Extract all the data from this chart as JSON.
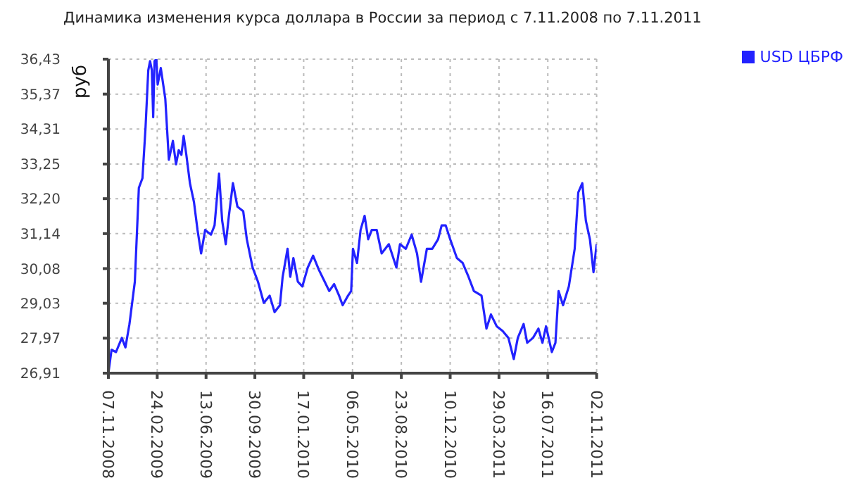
{
  "chart_data": {
    "type": "line",
    "title": "Динамика изменения курса доллара в России за период с 7.11.2008 по 7.11.2011",
    "ylabel": "руб",
    "x": [
      "2008-11-07",
      "2008-11-14",
      "2008-11-24",
      "2008-12-07",
      "2008-12-15",
      "2008-12-24",
      "2009-01-05",
      "2009-01-14",
      "2009-01-22",
      "2009-01-29",
      "2009-02-04",
      "2009-02-08",
      "2009-02-12",
      "2009-02-15",
      "2009-02-18",
      "2009-02-22",
      "2009-02-25",
      "2009-03-04",
      "2009-03-14",
      "2009-03-22",
      "2009-03-31",
      "2009-04-07",
      "2009-04-13",
      "2009-04-19",
      "2009-04-24",
      "2009-04-30",
      "2009-05-08",
      "2009-05-17",
      "2009-05-25",
      "2009-06-02",
      "2009-06-11",
      "2009-06-24",
      "2009-07-02",
      "2009-07-12",
      "2009-07-19",
      "2009-07-27",
      "2009-08-03",
      "2009-08-12",
      "2009-08-22",
      "2009-09-04",
      "2009-09-12",
      "2009-09-25",
      "2009-10-07",
      "2009-10-20",
      "2009-11-02",
      "2009-11-13",
      "2009-11-25",
      "2009-12-01",
      "2009-12-12",
      "2009-12-18",
      "2009-12-25",
      "2010-01-04",
      "2010-01-14",
      "2010-01-26",
      "2010-02-07",
      "2010-02-20",
      "2010-03-05",
      "2010-03-15",
      "2010-03-26",
      "2010-04-06",
      "2010-04-14",
      "2010-04-26",
      "2010-05-03",
      "2010-05-07",
      "2010-05-16",
      "2010-05-24",
      "2010-06-02",
      "2010-06-10",
      "2010-06-18",
      "2010-06-29",
      "2010-07-10",
      "2010-07-26",
      "2010-08-12",
      "2010-08-20",
      "2010-09-02",
      "2010-09-15",
      "2010-09-27",
      "2010-10-06",
      "2010-10-19",
      "2010-10-31",
      "2010-11-13",
      "2010-11-21",
      "2010-11-30",
      "2010-12-10",
      "2010-12-25",
      "2011-01-07",
      "2011-01-20",
      "2011-02-01",
      "2011-02-18",
      "2011-03-01",
      "2011-03-11",
      "2011-03-24",
      "2011-04-06",
      "2011-04-19",
      "2011-05-01",
      "2011-05-10",
      "2011-05-23",
      "2011-05-31",
      "2011-06-13",
      "2011-06-25",
      "2011-07-04",
      "2011-07-12",
      "2011-07-25",
      "2011-08-02",
      "2011-08-09",
      "2011-08-19",
      "2011-09-01",
      "2011-09-14",
      "2011-09-22",
      "2011-10-01",
      "2011-10-09",
      "2011-10-18",
      "2011-10-26",
      "2011-11-02"
    ],
    "series": [
      {
        "name": "USD ЦБРФ",
        "color": "#2222ff",
        "values": [
          26.91,
          27.62,
          27.55,
          27.98,
          27.69,
          28.4,
          29.68,
          32.53,
          32.82,
          34.38,
          36.09,
          36.37,
          36.09,
          34.67,
          36.37,
          36.43,
          35.66,
          36.16,
          35.23,
          33.38,
          33.95,
          33.24,
          33.67,
          33.53,
          34.1,
          33.53,
          32.67,
          32.1,
          31.25,
          30.54,
          31.25,
          31.11,
          31.39,
          32.96,
          31.53,
          30.82,
          31.68,
          32.67,
          31.96,
          31.82,
          30.97,
          30.11,
          29.68,
          29.04,
          29.26,
          28.76,
          28.97,
          29.83,
          30.68,
          29.83,
          30.4,
          29.68,
          29.54,
          30.11,
          30.47,
          30.04,
          29.68,
          29.4,
          29.61,
          29.26,
          28.97,
          29.26,
          29.4,
          30.68,
          30.25,
          31.25,
          31.68,
          30.97,
          31.25,
          31.25,
          30.54,
          30.82,
          30.11,
          30.82,
          30.68,
          31.11,
          30.54,
          29.68,
          30.68,
          30.68,
          30.97,
          31.39,
          31.39,
          30.97,
          30.4,
          30.25,
          29.83,
          29.4,
          29.26,
          28.26,
          28.69,
          28.33,
          28.19,
          27.98,
          27.34,
          27.98,
          28.4,
          27.83,
          27.98,
          28.26,
          27.83,
          28.33,
          27.55,
          27.83,
          29.4,
          28.97,
          29.54,
          30.68,
          32.39,
          32.67,
          31.53,
          30.97,
          29.97,
          30.82
        ]
      }
    ],
    "xlim": [
      "2008-11-07",
      "2011-11-02"
    ],
    "xticks": [
      {
        "value": "2008-11-07",
        "label": "07.11.2008"
      },
      {
        "value": "2009-02-24",
        "label": "24.02.2009"
      },
      {
        "value": "2009-06-13",
        "label": "13.06.2009"
      },
      {
        "value": "2009-09-30",
        "label": "30.09.2009"
      },
      {
        "value": "2010-01-17",
        "label": "17.01.2010"
      },
      {
        "value": "2010-05-06",
        "label": "06.05.2010"
      },
      {
        "value": "2010-08-23",
        "label": "23.08.2010"
      },
      {
        "value": "2010-12-10",
        "label": "10.12.2010"
      },
      {
        "value": "2011-03-29",
        "label": "29.03.2011"
      },
      {
        "value": "2011-07-16",
        "label": "16.07.2011"
      },
      {
        "value": "2011-11-02",
        "label": "02.11.2011"
      }
    ],
    "ylim": [
      26.91,
      36.43
    ],
    "yticks": [
      {
        "value": 26.91,
        "label": "26,91"
      },
      {
        "value": 27.97,
        "label": "27,97"
      },
      {
        "value": 29.03,
        "label": "29,03"
      },
      {
        "value": 30.08,
        "label": "30,08"
      },
      {
        "value": 31.14,
        "label": "31,14"
      },
      {
        "value": 32.2,
        "label": "32,20"
      },
      {
        "value": 33.25,
        "label": "33,25"
      },
      {
        "value": 34.31,
        "label": "34,31"
      },
      {
        "value": 35.37,
        "label": "35,37"
      },
      {
        "value": 36.43,
        "label": "36,43"
      }
    ],
    "grid": true,
    "legend": "top right"
  }
}
